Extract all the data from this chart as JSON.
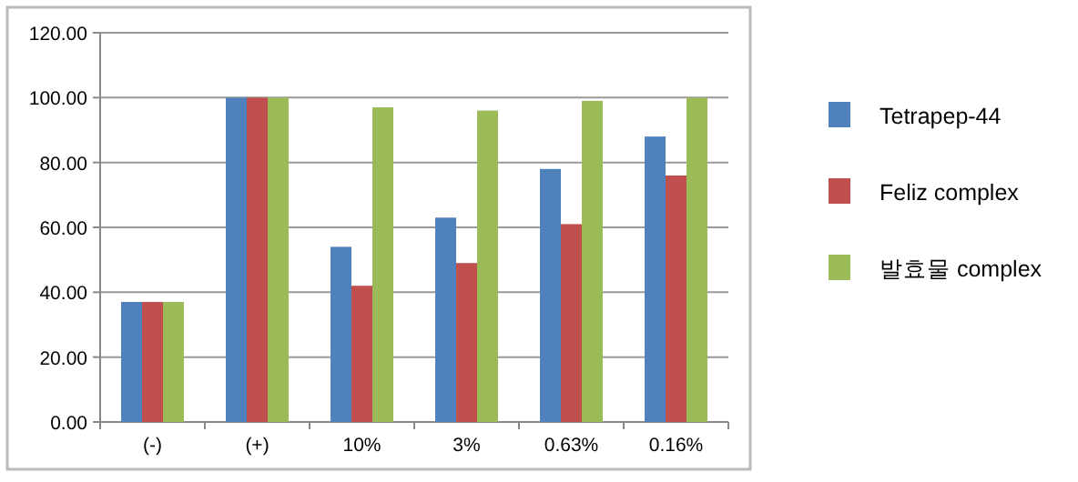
{
  "chart_data": {
    "type": "bar",
    "categories": [
      "(-)",
      "(+)",
      "10%",
      "3%",
      "0.63%",
      "0.16%"
    ],
    "series": [
      {
        "name": "Tetrapep-44",
        "color": "#4f81bd",
        "values": [
          37,
          100,
          54,
          63,
          78,
          88
        ]
      },
      {
        "name": "Feliz complex",
        "color": "#c0504d",
        "values": [
          37,
          100,
          42,
          49,
          61,
          76
        ]
      },
      {
        "name": "발효물 complex",
        "color": "#9bbb59",
        "values": [
          37,
          100,
          97,
          96,
          99,
          100
        ]
      }
    ],
    "ylim": [
      0,
      120
    ],
    "yticks": [
      {
        "value": 0,
        "label": "0.00"
      },
      {
        "value": 20,
        "label": "20.00"
      },
      {
        "value": 40,
        "label": "40.00"
      },
      {
        "value": 60,
        "label": "60.00"
      },
      {
        "value": 80,
        "label": "80.00"
      },
      {
        "value": 100,
        "label": "100.00"
      },
      {
        "value": 120,
        "label": "120.00"
      }
    ],
    "grid": "y",
    "legend": "right"
  }
}
